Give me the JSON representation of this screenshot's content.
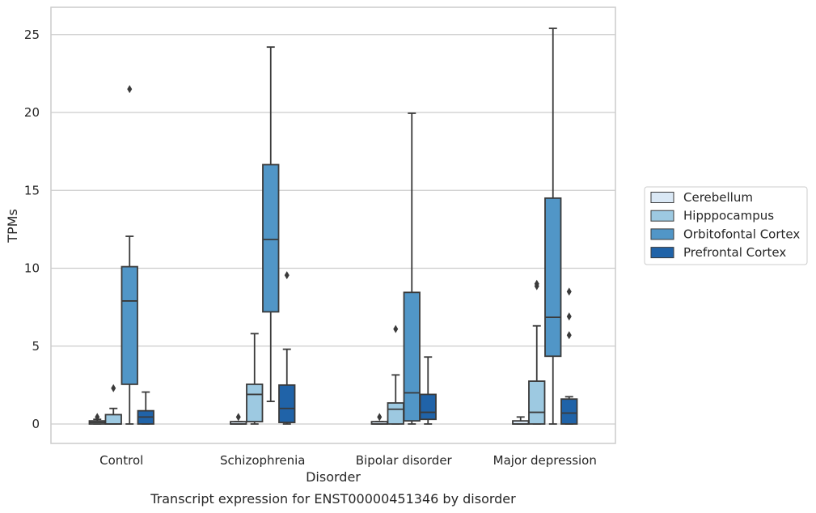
{
  "chart_data": {
    "type": "box",
    "title": "",
    "caption": "Transcript expression for ENST00000451346 by disorder",
    "xlabel": "Disorder",
    "ylabel": "TPMs",
    "ylim": [
      -1.2,
      26.7
    ],
    "yticks": [
      0,
      5,
      10,
      15,
      20,
      25
    ],
    "grid": true,
    "legend_position": "right",
    "categories": [
      "Control",
      "Schizophrenia",
      "Bipolar disorder",
      "Major depression"
    ],
    "series": [
      {
        "name": "Cerebellum",
        "color": "#dae8f5",
        "boxes": [
          {
            "whisker_low": 0.0,
            "q1": 0.0,
            "median": 0.1,
            "q3": 0.2,
            "whisker_high": 0.3,
            "outliers": [
              0.45
            ]
          },
          {
            "whisker_low": 0.0,
            "q1": 0.0,
            "median": 0.0,
            "q3": 0.15,
            "whisker_high": 0.15,
            "outliers": [
              0.45
            ]
          },
          {
            "whisker_low": 0.0,
            "q1": 0.0,
            "median": 0.0,
            "q3": 0.15,
            "whisker_high": 0.15,
            "outliers": [
              0.45
            ]
          },
          {
            "whisker_low": 0.0,
            "q1": 0.0,
            "median": 0.0,
            "q3": 0.2,
            "whisker_high": 0.45,
            "outliers": []
          }
        ]
      },
      {
        "name": "Hipppocampus",
        "color": "#9dc9e1",
        "boxes": [
          {
            "whisker_low": 0.0,
            "q1": 0.0,
            "median": 0.0,
            "q3": 0.6,
            "whisker_high": 1.0,
            "outliers": [
              2.3
            ]
          },
          {
            "whisker_low": 0.0,
            "q1": 0.15,
            "median": 1.9,
            "q3": 2.55,
            "whisker_high": 5.8,
            "outliers": []
          },
          {
            "whisker_low": 0.0,
            "q1": 0.0,
            "median": 0.95,
            "q3": 1.35,
            "whisker_high": 3.15,
            "outliers": [
              6.1
            ]
          },
          {
            "whisker_low": 0.0,
            "q1": 0.0,
            "median": 0.75,
            "q3": 2.75,
            "whisker_high": 6.3,
            "outliers": [
              8.85,
              9.0
            ]
          }
        ]
      },
      {
        "name": "Orbitofontal Cortex",
        "color": "#5196c7",
        "boxes": [
          {
            "whisker_low": 0.0,
            "q1": 2.55,
            "median": 7.9,
            "q3": 10.1,
            "whisker_high": 12.05,
            "outliers": [
              21.5
            ]
          },
          {
            "whisker_low": 1.45,
            "q1": 7.2,
            "median": 11.85,
            "q3": 16.65,
            "whisker_high": 24.2,
            "outliers": []
          },
          {
            "whisker_low": 0.0,
            "q1": 0.2,
            "median": 2.0,
            "q3": 8.45,
            "whisker_high": 19.95,
            "outliers": []
          },
          {
            "whisker_low": 0.0,
            "q1": 4.35,
            "median": 6.85,
            "q3": 14.5,
            "whisker_high": 25.4,
            "outliers": []
          }
        ]
      },
      {
        "name": "Prefrontal Cortex",
        "color": "#2063a8",
        "boxes": [
          {
            "whisker_low": 0.0,
            "q1": 0.0,
            "median": 0.45,
            "q3": 0.85,
            "whisker_high": 2.05,
            "outliers": []
          },
          {
            "whisker_low": 0.0,
            "q1": 0.1,
            "median": 1.0,
            "q3": 2.5,
            "whisker_high": 4.8,
            "outliers": [
              9.55
            ]
          },
          {
            "whisker_low": 0.0,
            "q1": 0.3,
            "median": 0.75,
            "q3": 1.9,
            "whisker_high": 4.3,
            "outliers": []
          },
          {
            "whisker_low": 0.0,
            "q1": 0.0,
            "median": 0.7,
            "q3": 1.6,
            "whisker_high": 1.75,
            "outliers": [
              5.7,
              6.9,
              8.5
            ]
          }
        ]
      }
    ]
  }
}
